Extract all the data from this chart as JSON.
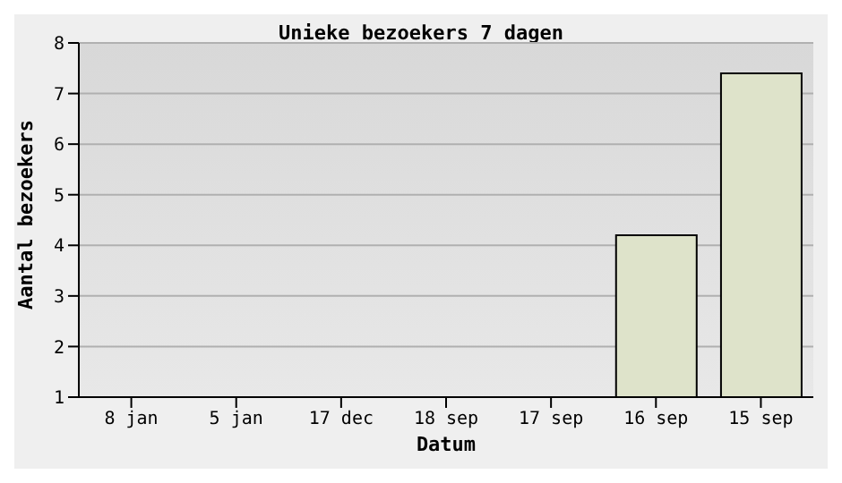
{
  "chart_data": {
    "type": "bar",
    "title": "Unieke bezoekers 7 dagen",
    "xlabel": "Datum",
    "ylabel": "Aantal bezoekers",
    "categories": [
      "8 jan",
      "5 jan",
      "17 dec",
      "18 sep",
      "17 sep",
      "16 sep",
      "15 sep"
    ],
    "values": [
      null,
      null,
      null,
      null,
      null,
      4.2,
      7.4
    ],
    "color": "#dee3ca",
    "ylim": [
      1,
      8
    ],
    "yticks": [
      1,
      2,
      3,
      4,
      5,
      6,
      7,
      8
    ],
    "grid": "y"
  }
}
